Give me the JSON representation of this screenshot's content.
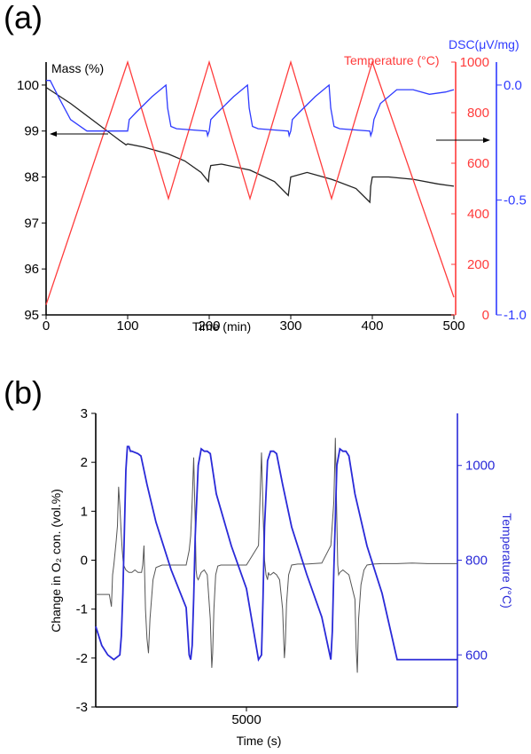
{
  "figure": {
    "panel_a_label": "(a)",
    "panel_b_label": "(b)"
  },
  "colors": {
    "mass": "#222222",
    "temperature_a": "#ff3b3b",
    "dsc": "#2f3bff",
    "o2": "#555555",
    "temperature_b": "#2a2ad8"
  },
  "chart_data": [
    {
      "type": "line",
      "panel": "(a)",
      "xlabel": "Time (min)",
      "xlim": [
        0,
        500
      ],
      "xticks": [
        "0",
        "100",
        "200",
        "300",
        "400",
        "500"
      ],
      "axes": {
        "left": {
          "label": "Mass (%)",
          "ylim": [
            95,
            100.5
          ],
          "ticks": [
            "95",
            "96",
            "97",
            "98",
            "99",
            "100"
          ]
        },
        "right_temperature": {
          "label": "Temperature (°C)",
          "ylim": [
            0,
            1000
          ],
          "ticks": [
            "0",
            "200",
            "400",
            "600",
            "800",
            "1000"
          ]
        },
        "right_dsc": {
          "label": "DSC(μV/mg)",
          "ylim": [
            -1.0,
            0.1
          ],
          "ticks": [
            "-1.0",
            "-0.5",
            "0.0"
          ]
        }
      },
      "series": [
        {
          "axis": "left",
          "color_key": "mass",
          "x": [
            0,
            30,
            60,
            90,
            98,
            100,
            120,
            150,
            170,
            190,
            199,
            200,
            202,
            215,
            250,
            280,
            297,
            298,
            300,
            320,
            350,
            380,
            397,
            398,
            400,
            420,
            450,
            480,
            500
          ],
          "y": [
            99.95,
            99.6,
            99.2,
            98.8,
            98.7,
            98.72,
            98.65,
            98.5,
            98.35,
            98.1,
            97.9,
            98.1,
            98.25,
            98.28,
            98.15,
            97.9,
            97.6,
            97.75,
            98.0,
            98.1,
            97.95,
            97.75,
            97.45,
            97.8,
            98.0,
            98.0,
            97.95,
            97.85,
            97.8
          ]
        },
        {
          "axis": "right_temperature",
          "color_key": "temperature_a",
          "x": [
            0,
            100,
            150,
            200,
            250,
            300,
            350,
            400,
            500
          ],
          "y": [
            40,
            1000,
            460,
            1000,
            460,
            1000,
            460,
            1000,
            70
          ]
        },
        {
          "axis": "right_dsc",
          "color_key": "dsc",
          "x": [
            0,
            5,
            15,
            30,
            50,
            70,
            97,
            98,
            100,
            102,
            110,
            130,
            147,
            149,
            153,
            160,
            197,
            198,
            200,
            202,
            210,
            230,
            247,
            249,
            253,
            260,
            297,
            298,
            300,
            302,
            310,
            330,
            347,
            349,
            353,
            360,
            397,
            398,
            400,
            402,
            410,
            430,
            450,
            470,
            490,
            500
          ],
          "y": [
            0.02,
            0.02,
            -0.05,
            -0.15,
            -0.2,
            -0.2,
            -0.2,
            -0.2,
            -0.2,
            -0.15,
            -0.12,
            -0.05,
            0.0,
            -0.1,
            -0.18,
            -0.19,
            -0.2,
            -0.22,
            -0.2,
            -0.15,
            -0.12,
            -0.05,
            0.0,
            -0.1,
            -0.18,
            -0.19,
            -0.2,
            -0.22,
            -0.2,
            -0.15,
            -0.12,
            -0.05,
            0.0,
            -0.1,
            -0.18,
            -0.19,
            -0.2,
            -0.22,
            -0.2,
            -0.15,
            -0.08,
            -0.02,
            -0.02,
            -0.04,
            -0.03,
            -0.02
          ]
        }
      ]
    },
    {
      "type": "line",
      "panel": "(b)",
      "xlabel": "Time (s)",
      "xlim": [
        0,
        12000
      ],
      "xticks": [
        "5000"
      ],
      "axes": {
        "left": {
          "label": "Change in O₂ con. (vol.%)",
          "ylim": [
            -3,
            3
          ],
          "ticks": [
            "-3",
            "-2",
            "-1",
            "0",
            "1",
            "2",
            "3"
          ]
        },
        "right": {
          "label": "Temperature (°C)",
          "ylim": [
            490,
            1110
          ],
          "ticks": [
            "600",
            "800",
            "1000"
          ]
        }
      },
      "series": [
        {
          "axis": "left",
          "color_key": "o2",
          "x": [
            0,
            400,
            450,
            520,
            560,
            600,
            680,
            720,
            760,
            800,
            840,
            880,
            920,
            1000,
            1100,
            1200,
            1300,
            1400,
            1520,
            1560,
            1600,
            1650,
            1700,
            1750,
            1800,
            1900,
            2000,
            2200,
            2500,
            2800,
            3000,
            3100,
            3150,
            3200,
            3250,
            3300,
            3330,
            3360,
            3400,
            3500,
            3600,
            3700,
            3800,
            3850,
            3880,
            3920,
            3980,
            4050,
            4150,
            4300,
            4500,
            5000,
            5400,
            5500,
            5550,
            5600,
            5650,
            5700,
            5730,
            5760,
            5800,
            5900,
            6000,
            6100,
            6200,
            6260,
            6290,
            6330,
            6400,
            6500,
            6700,
            7000,
            7500,
            7800,
            7900,
            7950,
            8000,
            8030,
            8060,
            8100,
            8200,
            8400,
            8600,
            8640,
            8680,
            8720,
            8800,
            8900,
            9000,
            9200,
            9500,
            10000,
            10500,
            11000,
            12000
          ],
          "y": [
            -0.7,
            -0.7,
            -0.7,
            -0.95,
            -0.3,
            -0.1,
            0.4,
            0.7,
            1.5,
            1.1,
            0.6,
            0.2,
            -0.1,
            -0.2,
            -0.25,
            -0.25,
            -0.2,
            -0.25,
            -0.25,
            -0.1,
            0.3,
            -1.0,
            -1.6,
            -1.9,
            -1.2,
            -0.4,
            -0.15,
            -0.1,
            -0.1,
            -0.1,
            -0.1,
            0.2,
            0.5,
            1.2,
            2.1,
            0.8,
            -0.2,
            -0.35,
            -0.4,
            -0.25,
            -0.2,
            -0.3,
            -1.2,
            -2.2,
            -1.9,
            -1.0,
            -0.3,
            -0.12,
            -0.1,
            -0.1,
            -0.1,
            -0.1,
            0.3,
            2.2,
            1.0,
            0.0,
            -0.3,
            -0.4,
            -0.25,
            -0.3,
            -0.3,
            -0.25,
            -0.3,
            -0.4,
            -1.0,
            -2.0,
            -1.7,
            -0.9,
            -0.3,
            -0.1,
            -0.08,
            -0.08,
            -0.06,
            0.3,
            1.2,
            2.5,
            0.8,
            -0.1,
            -0.3,
            -0.25,
            -0.2,
            -0.3,
            -0.8,
            -1.8,
            -2.3,
            -1.2,
            -0.5,
            -0.2,
            -0.1,
            -0.08,
            -0.07,
            -0.07,
            -0.06,
            -0.07,
            -0.07
          ]
        },
        {
          "axis": "right",
          "color_key": "temperature_b",
          "x": [
            0,
            200,
            400,
            600,
            800,
            850,
            900,
            950,
            1000,
            1050,
            1100,
            1150,
            1200,
            1400,
            1500,
            1700,
            2000,
            2500,
            3000,
            3100,
            3150,
            3200,
            3250,
            3300,
            3400,
            3500,
            3600,
            3700,
            3800,
            4000,
            4500,
            5000,
            5400,
            5500,
            5550,
            5600,
            5700,
            5800,
            5900,
            6000,
            6200,
            6500,
            7000,
            7500,
            7700,
            7800,
            7850,
            7900,
            8000,
            8100,
            8200,
            8300,
            8400,
            8600,
            9000,
            9500,
            10000,
            12000
          ],
          "y": [
            660,
            620,
            600,
            590,
            600,
            640,
            730,
            860,
            990,
            1040,
            1040,
            1030,
            1030,
            1025,
            1020,
            960,
            880,
            780,
            700,
            600,
            590,
            620,
            720,
            850,
            1000,
            1035,
            1030,
            1030,
            1025,
            940,
            830,
            740,
            590,
            600,
            720,
            870,
            1010,
            1030,
            1030,
            1025,
            960,
            870,
            770,
            680,
            620,
            590,
            650,
            780,
            1000,
            1035,
            1030,
            1030,
            1020,
            940,
            830,
            730,
            590,
            590
          ]
        }
      ]
    }
  ]
}
